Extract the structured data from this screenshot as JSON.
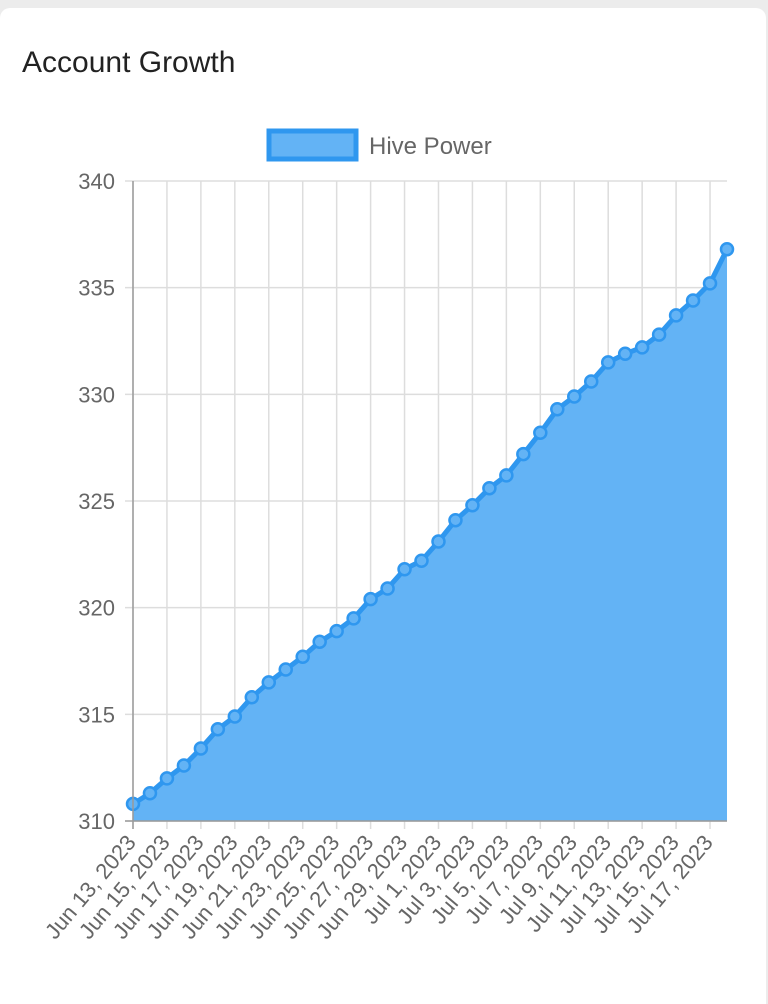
{
  "card": {
    "title": "Account Growth"
  },
  "chart_data": {
    "type": "area",
    "title": "Account Growth",
    "xlabel": "",
    "ylabel": "",
    "ylim": [
      310,
      340
    ],
    "yticks": [
      310,
      315,
      320,
      325,
      330,
      335,
      340
    ],
    "grid": true,
    "legend_position": "top-center",
    "colors": {
      "line": "#2f97ef",
      "fill": "#63b3f5",
      "grid": "#dddddd",
      "axis": "#9a9a9a"
    },
    "x": [
      "Jun 13, 2023",
      "Jun 14, 2023",
      "Jun 15, 2023",
      "Jun 16, 2023",
      "Jun 17, 2023",
      "Jun 18, 2023",
      "Jun 19, 2023",
      "Jun 20, 2023",
      "Jun 21, 2023",
      "Jun 22, 2023",
      "Jun 23, 2023",
      "Jun 24, 2023",
      "Jun 25, 2023",
      "Jun 26, 2023",
      "Jun 27, 2023",
      "Jun 28, 2023",
      "Jun 29, 2023",
      "Jun 30, 2023",
      "Jul 1, 2023",
      "Jul 2, 2023",
      "Jul 3, 2023",
      "Jul 4, 2023",
      "Jul 5, 2023",
      "Jul 6, 2023",
      "Jul 7, 2023",
      "Jul 8, 2023",
      "Jul 9, 2023",
      "Jul 10, 2023",
      "Jul 11, 2023",
      "Jul 12, 2023",
      "Jul 13, 2023",
      "Jul 14, 2023",
      "Jul 15, 2023",
      "Jul 16, 2023",
      "Jul 17, 2023",
      "Jul 18, 2023"
    ],
    "x_tick_labels": [
      "Jun 13, 2023",
      "Jun 15, 2023",
      "Jun 17, 2023",
      "Jun 19, 2023",
      "Jun 21, 2023",
      "Jun 23, 2023",
      "Jun 25, 2023",
      "Jun 27, 2023",
      "Jun 29, 2023",
      "Jul 1, 2023",
      "Jul 3, 2023",
      "Jul 5, 2023",
      "Jul 7, 2023",
      "Jul 9, 2023",
      "Jul 11, 2023",
      "Jul 13, 2023",
      "Jul 15, 2023",
      "Jul 17, 2023"
    ],
    "series": [
      {
        "name": "Hive Power",
        "values": [
          310.8,
          311.3,
          312.0,
          312.6,
          313.4,
          314.3,
          314.9,
          315.8,
          316.5,
          317.1,
          317.7,
          318.4,
          318.9,
          319.5,
          320.4,
          320.9,
          321.8,
          322.2,
          323.1,
          324.1,
          324.8,
          325.6,
          326.2,
          327.2,
          328.2,
          329.3,
          329.9,
          330.6,
          331.5,
          331.9,
          332.2,
          332.8,
          333.7,
          334.4,
          335.2,
          336.8
        ]
      }
    ]
  }
}
